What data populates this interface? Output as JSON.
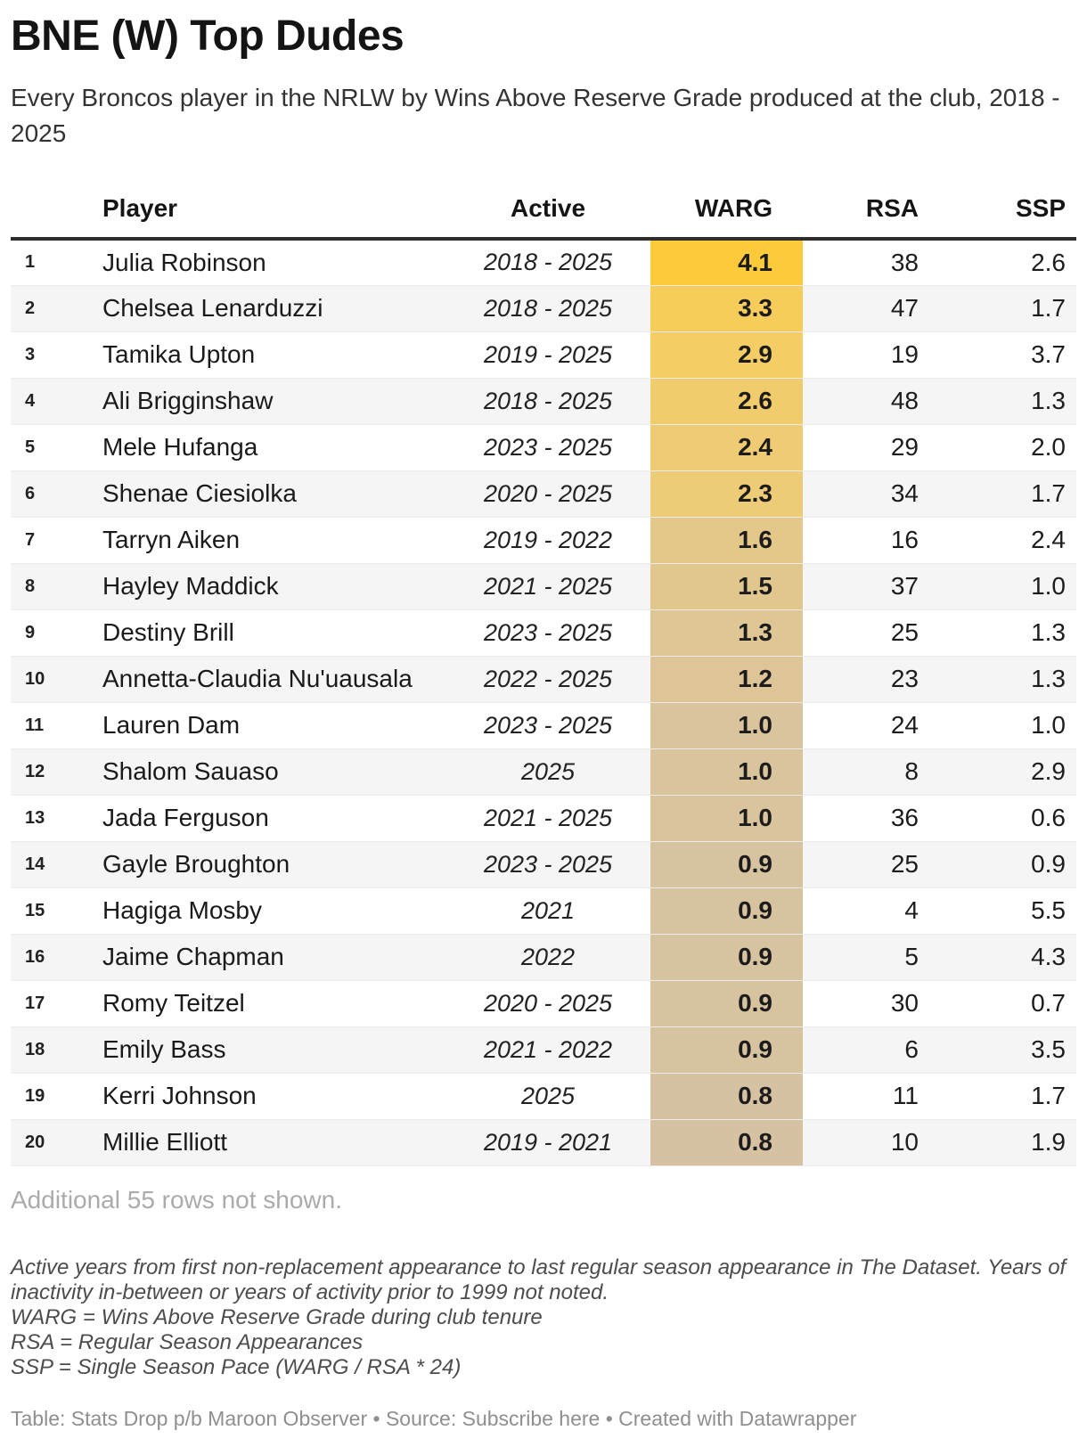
{
  "chart_data": {
    "type": "table",
    "title": "BNE (W) Top Dudes",
    "subtitle": "Every Broncos player in the NRLW by Wins Above Reserve Grade produced at the club, 2018 - 2025",
    "columns": [
      "Player",
      "Active",
      "WARG",
      "RSA",
      "SSP"
    ],
    "heatmap_column": "WARG",
    "heatmap_scale": {
      "min_value": 0.8,
      "max_value": 4.1,
      "min_color": "#D6C2A3",
      "max_color": "#FCCA3B"
    },
    "rows": [
      {
        "rank": "1",
        "player": "Julia Robinson",
        "active": "2018 - 2025",
        "warg": "4.1",
        "rsa": "38",
        "ssp": "2.6",
        "warg_color": "#FCCA3B"
      },
      {
        "rank": "2",
        "player": "Chelsea Lenarduzzi",
        "active": "2018 - 2025",
        "warg": "3.3",
        "rsa": "47",
        "ssp": "1.7",
        "warg_color": "#F6CD5B"
      },
      {
        "rank": "3",
        "player": "Tamika Upton",
        "active": "2019 - 2025",
        "warg": "2.9",
        "rsa": "19",
        "ssp": "3.7",
        "warg_color": "#F4CD64"
      },
      {
        "rank": "4",
        "player": "Ali Brigginshaw",
        "active": "2018 - 2025",
        "warg": "2.6",
        "rsa": "48",
        "ssp": "1.3",
        "warg_color": "#F1CC6D"
      },
      {
        "rank": "5",
        "player": "Mele Hufanga",
        "active": "2023 - 2025",
        "warg": "2.4",
        "rsa": "29",
        "ssp": "2.0",
        "warg_color": "#EFCB73"
      },
      {
        "rank": "6",
        "player": "Shenae Ciesiolka",
        "active": "2020 - 2025",
        "warg": "2.3",
        "rsa": "34",
        "ssp": "1.7",
        "warg_color": "#EECB76"
      },
      {
        "rank": "7",
        "player": "Tarryn Aiken",
        "active": "2019 - 2022",
        "warg": "1.6",
        "rsa": "16",
        "ssp": "2.4",
        "warg_color": "#E3C88A"
      },
      {
        "rank": "8",
        "player": "Hayley Maddick",
        "active": "2021 - 2025",
        "warg": "1.5",
        "rsa": "37",
        "ssp": "1.0",
        "warg_color": "#E1C78E"
      },
      {
        "rank": "9",
        "player": "Destiny Brill",
        "active": "2023 - 2025",
        "warg": "1.3",
        "rsa": "25",
        "ssp": "1.3",
        "warg_color": "#DEC695"
      },
      {
        "rank": "10",
        "player": "Annetta-Claudia Nu'uausala",
        "active": "2022 - 2025",
        "warg": "1.2",
        "rsa": "23",
        "ssp": "1.3",
        "warg_color": "#DDC598"
      },
      {
        "rank": "11",
        "player": "Lauren Dam",
        "active": "2023 - 2025",
        "warg": "1.0",
        "rsa": "24",
        "ssp": "1.0",
        "warg_color": "#DAC49E"
      },
      {
        "rank": "12",
        "player": "Shalom Sauaso",
        "active": "2025",
        "warg": "1.0",
        "rsa": "8",
        "ssp": "2.9",
        "warg_color": "#DAC49E"
      },
      {
        "rank": "13",
        "player": "Jada Ferguson",
        "active": "2021 - 2025",
        "warg": "1.0",
        "rsa": "36",
        "ssp": "0.6",
        "warg_color": "#DAC49E"
      },
      {
        "rank": "14",
        "player": "Gayle Broughton",
        "active": "2023 - 2025",
        "warg": "0.9",
        "rsa": "25",
        "ssp": "0.9",
        "warg_color": "#D8C3A0"
      },
      {
        "rank": "15",
        "player": "Hagiga Mosby",
        "active": "2021",
        "warg": "0.9",
        "rsa": "4",
        "ssp": "5.5",
        "warg_color": "#D8C3A0"
      },
      {
        "rank": "16",
        "player": "Jaime Chapman",
        "active": "2022",
        "warg": "0.9",
        "rsa": "5",
        "ssp": "4.3",
        "warg_color": "#D8C3A0"
      },
      {
        "rank": "17",
        "player": "Romy Teitzel",
        "active": "2020 - 2025",
        "warg": "0.9",
        "rsa": "30",
        "ssp": "0.7",
        "warg_color": "#D8C3A0"
      },
      {
        "rank": "18",
        "player": "Emily Bass",
        "active": "2021 - 2022",
        "warg": "0.9",
        "rsa": "6",
        "ssp": "3.5",
        "warg_color": "#D8C3A0"
      },
      {
        "rank": "19",
        "player": "Kerri Johnson",
        "active": "2025",
        "warg": "0.8",
        "rsa": "11",
        "ssp": "1.7",
        "warg_color": "#D6C2A3"
      },
      {
        "rank": "20",
        "player": "Millie Elliott",
        "active": "2019 - 2021",
        "warg": "0.8",
        "rsa": "10",
        "ssp": "1.9",
        "warg_color": "#D6C2A3"
      }
    ]
  },
  "additional_rows_note": "Additional 55 rows not shown.",
  "notes": [
    "Active years from first non-replacement appearance to last regular season appearance in The Dataset. Years of inactivity in-between or years of activity prior to 1999 not noted.",
    "WARG = Wins Above Reserve Grade during club tenure",
    "RSA = Regular Season Appearances",
    "SSP = Single Season Pace (WARG / RSA * 24)"
  ],
  "footer": {
    "part1": "Table: Stats Drop p/b Maroon Observer • Source: ",
    "source_link": "Subscribe here",
    "part2": " • Created with ",
    "brand_link": "Datawrapper"
  }
}
